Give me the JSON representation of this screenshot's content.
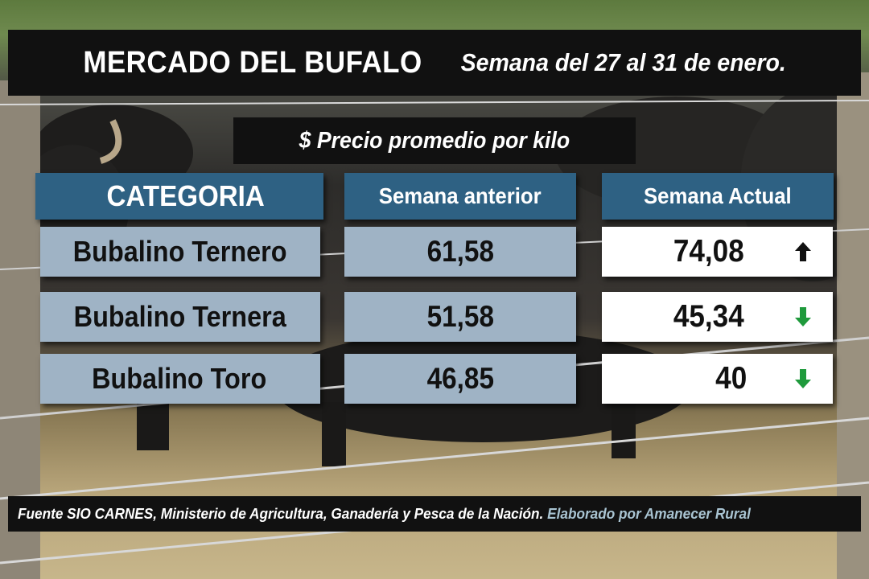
{
  "title": {
    "main": "MERCADO DEL BUFALO",
    "week": "Semana del 27 al 31 de enero."
  },
  "subtitle": "$ Precio promedio por kilo",
  "table": {
    "headers": {
      "category": "CATEGORIA",
      "previous": "Semana anterior",
      "current": "Semana Actual"
    },
    "rows": [
      {
        "category": "Bubalino Ternero",
        "previous": "61,58",
        "current": "74,08",
        "trend": "up",
        "trend_icon": "arrow-up-icon",
        "trend_color": "#111111"
      },
      {
        "category": "Bubalino Ternera",
        "previous": "51,58",
        "current": "45,34",
        "trend": "down",
        "trend_icon": "arrow-down-icon",
        "trend_color": "#1f9a3c"
      },
      {
        "category": "Bubalino Toro",
        "previous": "46,85",
        "current": "40",
        "trend": "down",
        "trend_icon": "arrow-down-icon",
        "trend_color": "#1f9a3c"
      }
    ]
  },
  "footer": {
    "source": "Fuente SIO CARNES,  Ministerio de Agricultura, Ganadería y Pesca de la Nación.",
    "credit": "Elaborado por  Amanecer Rural"
  },
  "colors": {
    "header_bg": "#2e6183",
    "row_bg": "#9fb3c5",
    "current_bg": "#ffffff",
    "banner_bg": "#111111",
    "accent_text": "#a9c4d2"
  }
}
